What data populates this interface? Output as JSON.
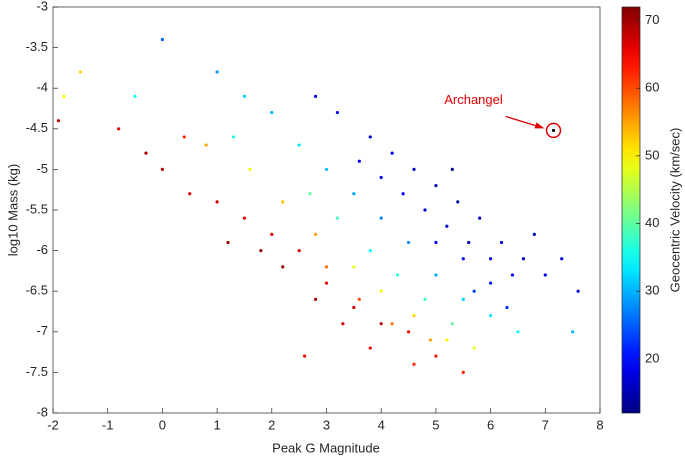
{
  "chart_data": {
    "type": "scatter",
    "xlabel": "Peak G Magnitude",
    "ylabel": "log10 Mass (kg)",
    "xlim": [
      -2,
      8
    ],
    "xticks": [
      -2,
      -1,
      0,
      1,
      2,
      3,
      4,
      5,
      6,
      7,
      8
    ],
    "ylim": [
      -8,
      -3
    ],
    "yticks": [
      -3,
      -3.5,
      -4,
      -4.5,
      -5,
      -5.5,
      -6,
      -6.5,
      -7,
      -7.5,
      -8
    ],
    "x": [
      4.2,
      4.6,
      5.0,
      5.4,
      5.8,
      6.2,
      6.6,
      7.0,
      4.8,
      5.2,
      5.6,
      6.0,
      6.4,
      5.0,
      5.5,
      6.0,
      4.4,
      3.8,
      3.2,
      2.8,
      3.6,
      4.0,
      5.3,
      6.8,
      7.3,
      7.6,
      6.3,
      5.7,
      4.0,
      4.5,
      5.0,
      5.5,
      6.0,
      3.5,
      3.0,
      2.5,
      2.0,
      1.5,
      1.0,
      0.0,
      -0.5,
      3.8,
      4.3,
      4.8,
      5.3,
      6.5,
      7.5,
      3.2,
      2.7,
      1.3,
      3.5,
      4.0,
      4.6,
      5.2,
      5.7,
      2.8,
      2.2,
      1.6,
      0.8,
      3.0,
      3.6,
      4.2,
      4.9,
      -1.5,
      -1.8,
      0.0,
      0.5,
      1.0,
      1.5,
      2.0,
      2.5,
      3.0,
      3.5,
      4.0,
      4.5,
      5.0,
      2.2,
      2.8,
      3.3,
      1.8,
      -1.9,
      -0.8,
      -0.3,
      1.2,
      2.6,
      3.8,
      4.6,
      5.5,
      0.4
    ],
    "y": [
      -4.8,
      -5.0,
      -5.2,
      -5.4,
      -5.6,
      -5.9,
      -6.1,
      -6.3,
      -5.5,
      -5.7,
      -5.9,
      -6.1,
      -6.3,
      -5.9,
      -6.1,
      -6.4,
      -5.3,
      -4.6,
      -4.3,
      -4.1,
      -4.9,
      -5.1,
      -5.0,
      -5.8,
      -6.1,
      -6.5,
      -6.7,
      -6.5,
      -5.6,
      -5.9,
      -6.3,
      -6.6,
      -6.8,
      -5.3,
      -5.0,
      -4.7,
      -4.3,
      -4.1,
      -3.8,
      -3.4,
      -4.1,
      -6.0,
      -6.3,
      -6.6,
      -6.9,
      -7.0,
      -7.0,
      -5.6,
      -5.3,
      -4.6,
      -6.2,
      -6.5,
      -6.8,
      -7.1,
      -7.2,
      -5.8,
      -5.4,
      -5.0,
      -4.7,
      -6.2,
      -6.6,
      -6.9,
      -7.1,
      -3.8,
      -4.1,
      -5.0,
      -5.3,
      -5.4,
      -5.6,
      -5.8,
      -6.0,
      -6.4,
      -6.7,
      -6.9,
      -7.0,
      -7.3,
      -6.2,
      -6.6,
      -6.9,
      -6.0,
      -4.4,
      -4.5,
      -4.8,
      -5.9,
      -7.3,
      -7.2,
      -7.4,
      -7.5,
      -4.6
    ],
    "c": [
      18,
      16,
      15,
      14,
      15,
      16,
      17,
      19,
      18,
      17,
      16,
      18,
      20,
      20,
      19,
      21,
      19,
      17,
      18,
      20,
      20,
      19,
      14,
      15,
      17,
      18,
      22,
      23,
      27,
      28,
      30,
      32,
      33,
      29,
      31,
      33,
      30,
      32,
      28,
      25,
      35,
      35,
      37,
      38,
      40,
      35,
      30,
      38,
      40,
      36,
      48,
      50,
      52,
      50,
      48,
      55,
      53,
      50,
      55,
      58,
      60,
      58,
      55,
      52,
      50,
      68,
      66,
      67,
      65,
      66,
      67,
      65,
      66,
      68,
      64,
      63,
      70,
      69,
      67,
      71,
      68,
      66,
      70,
      70,
      64,
      65,
      62,
      63,
      62
    ],
    "colorbar": {
      "label": "Geocentric Velocity (km/sec)",
      "lim": [
        12,
        72
      ],
      "ticks": [
        20,
        30,
        40,
        50,
        60,
        70
      ],
      "colormap": "jet"
    },
    "annotation": {
      "text": "Archangel",
      "x": 7.15,
      "y": -4.52,
      "color": "#e00000"
    }
  }
}
